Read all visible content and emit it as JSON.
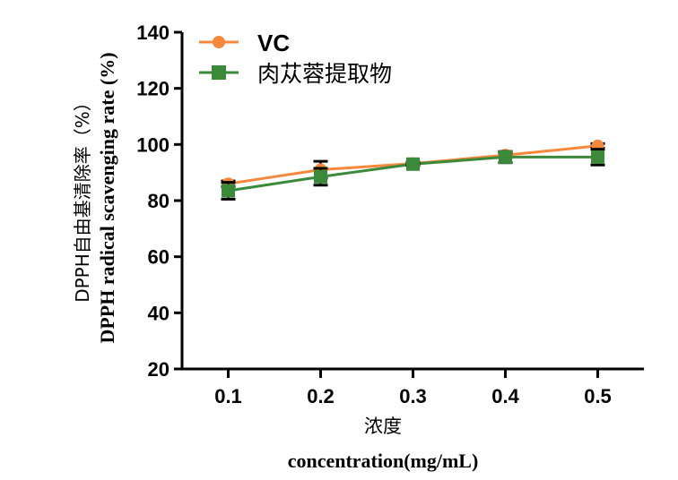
{
  "chart_data": {
    "type": "line",
    "x": [
      0.1,
      0.2,
      0.3,
      0.4,
      0.5
    ],
    "xticks": [
      "0.1",
      "0.2",
      "0.3",
      "0.4",
      "0.5"
    ],
    "yticks": [
      "20",
      "40",
      "60",
      "80",
      "100",
      "120",
      "140"
    ],
    "ylim": [
      20,
      140
    ],
    "xlim": [
      0.05,
      0.55
    ],
    "xlabel_cn": "浓度",
    "xlabel_en": "concentration(mg/mL)",
    "ylabel_cn": "DPPH自由基清除率（%）",
    "ylabel_en": "DPPH radical scavenging rate (%)",
    "legend_position": "top-left",
    "grid": false,
    "series": [
      {
        "name": "VC",
        "color": "#f5883a",
        "marker": "circle",
        "values": [
          86.0,
          91.0,
          93.2,
          96.2,
          99.5
        ],
        "errors": [
          1.0,
          3.0,
          0.5,
          0.8,
          0.8
        ]
      },
      {
        "name": "肉苁蓉提取物",
        "color": "#3a8a3a",
        "marker": "square",
        "values": [
          83.5,
          88.5,
          93.0,
          95.5,
          95.5
        ],
        "errors": [
          3.0,
          3.0,
          0.5,
          2.0,
          2.8
        ]
      }
    ]
  }
}
